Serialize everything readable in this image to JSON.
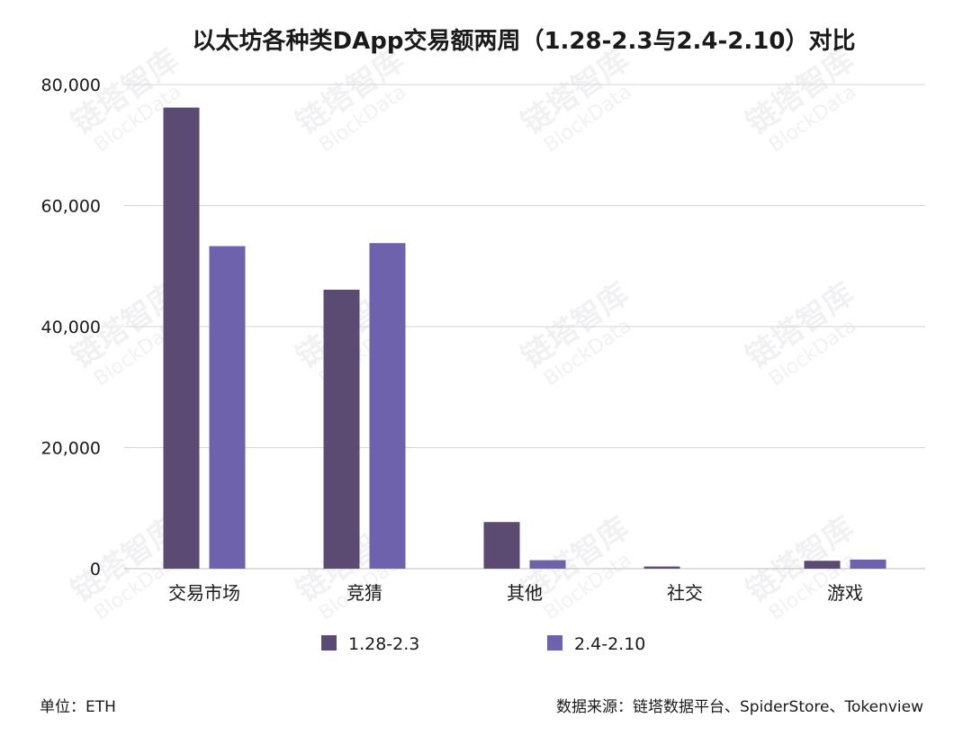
{
  "chart_data": {
    "type": "bar",
    "title": "以太坊各种类DApp交易额两周（1.28-2.3与2.4-2.10）对比",
    "categories": [
      "交易市场",
      "竞猜",
      "其他",
      "社交",
      "游戏"
    ],
    "series": [
      {
        "name": "1.28-2.3",
        "values": [
          76200,
          46100,
          7700,
          350,
          1300
        ],
        "color": "#5b4a72"
      },
      {
        "name": "2.4-2.10",
        "values": [
          53300,
          53800,
          1400,
          0,
          1500
        ],
        "color": "#6e62ac"
      }
    ],
    "ylim": [
      0,
      80000
    ],
    "yticks": [
      "0",
      "20,000",
      "40,000",
      "60,000",
      "80,000"
    ],
    "ytick_values": [
      0,
      20000,
      40000,
      60000,
      80000
    ],
    "grid": true,
    "legend_position": "bottom",
    "xlabel": "",
    "ylabel": ""
  },
  "footer": {
    "unit": "单位：ETH",
    "source": "数据来源：链塔数据平台、SpiderStore、Tokenview"
  },
  "watermark": {
    "text": "链塔智库",
    "sub": "BlockData"
  }
}
